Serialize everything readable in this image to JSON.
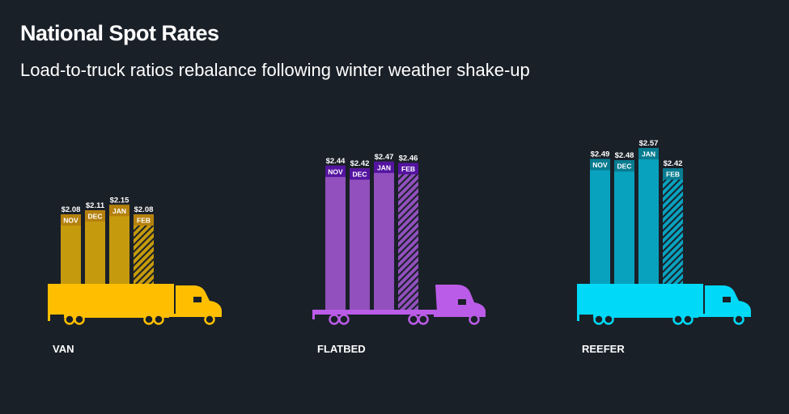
{
  "header": {
    "title": "National Spot Rates",
    "subtitle": "Load-to-truck ratios rebalance following winter weather shake-up"
  },
  "chart_data": {
    "type": "bar",
    "title": "National Spot Rates",
    "subtitle": "Load-to-truck ratios rebalance following winter weather shake-up",
    "categories": [
      "NOV",
      "DEC",
      "JAN",
      "FEB"
    ],
    "note": "FEB bars shown hatched",
    "groups": [
      {
        "name": "VAN",
        "values": [
          2.08,
          2.11,
          2.15,
          2.08
        ],
        "labels": [
          "$2.08",
          "$2.11",
          "$2.15",
          "$2.08"
        ],
        "colors": {
          "bar": "#c59a0c",
          "band": "#b5810e",
          "truck": "#ffbf00"
        },
        "truck": "dry-van-truck"
      },
      {
        "name": "FLATBED",
        "values": [
          2.44,
          2.42,
          2.47,
          2.46
        ],
        "labels": [
          "$2.44",
          "$2.42",
          "$2.47",
          "$2.46"
        ],
        "colors": {
          "bar": "#9150bd",
          "band": "#5414a0",
          "truck": "#bb5ce8"
        },
        "truck": "flatbed-truck"
      },
      {
        "name": "REEFER",
        "values": [
          2.49,
          2.48,
          2.57,
          2.42
        ],
        "labels": [
          "$2.49",
          "$2.48",
          "$2.57",
          "$2.42"
        ],
        "colors": {
          "bar": "#08a2bf",
          "band": "#087c90",
          "truck": "#00d9f7"
        },
        "truck": "reefer-truck"
      }
    ]
  }
}
